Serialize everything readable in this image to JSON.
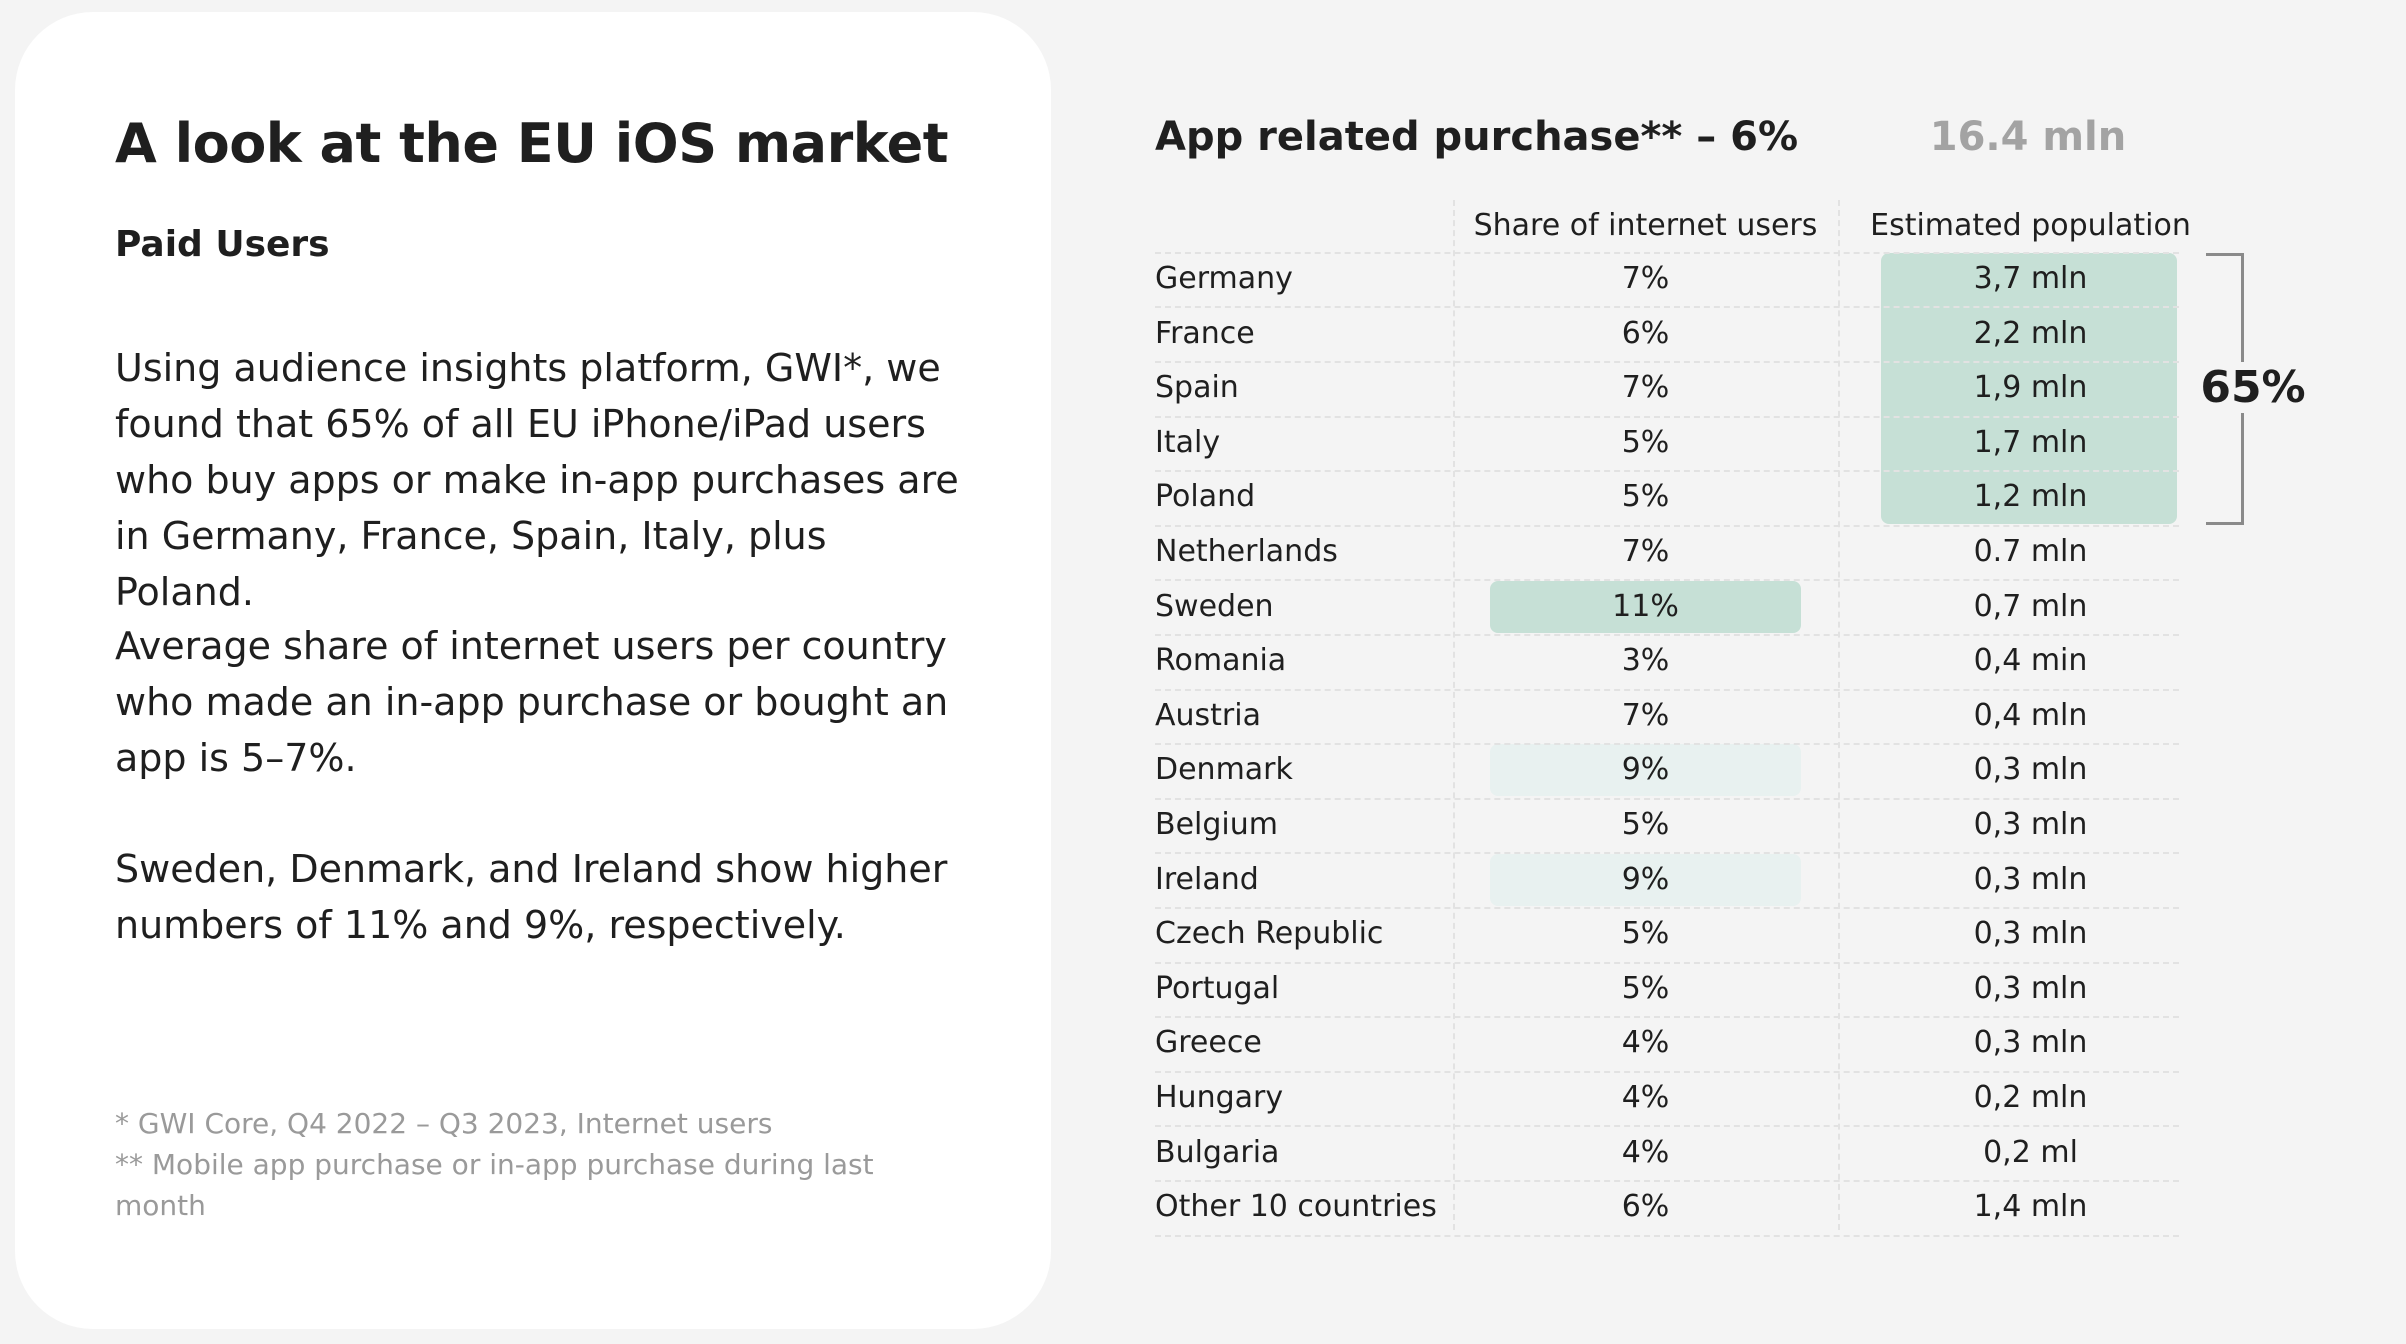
{
  "header": {
    "title": "A look at the EU iOS market",
    "subtitle": "Paid Users"
  },
  "paragraphs": [
    "Using audience insights platform, GWI*, we found that 65% of all EU iPhone/iPad users who buy apps or make in-app purchases are in Germany, France, Spain, Italy, plus Poland.",
    "Average share of internet users per country who made an in-app purchase or bought an app is 5–7%.",
    "Sweden, Denmark, and Ireland show higher numbers of 11% and 9%, respectively."
  ],
  "footnotes": [
    "* GWI Core, Q4 2022 – Q3 2023, Internet users",
    "** Mobile app purchase or in-app purchase during last month"
  ],
  "table": {
    "heading": "App related purchase** – 6%",
    "total": "16.4 mln",
    "columns": [
      "Share of internet users",
      "Estimated population"
    ],
    "bracket_label": "65%",
    "rows": [
      [
        "Germany",
        "7%",
        "3,7 mln"
      ],
      [
        "France",
        "6%",
        "2,2 mln"
      ],
      [
        "Spain",
        "7%",
        "1,9 mln"
      ],
      [
        "Italy",
        "5%",
        "1,7 mln"
      ],
      [
        "Poland",
        "5%",
        "1,2 mln"
      ],
      [
        "Netherlands",
        "7%",
        "0.7 mln"
      ],
      [
        "Sweden",
        "11%",
        "0,7 mln"
      ],
      [
        "Romania",
        "3%",
        "0,4 min"
      ],
      [
        "Austria",
        "7%",
        "0,4 mln"
      ],
      [
        "Denmark",
        "9%",
        "0,3 mln"
      ],
      [
        "Belgium",
        "5%",
        "0,3 mln"
      ],
      [
        "Ireland",
        "9%",
        "0,3 mln"
      ],
      [
        "Czech Republic",
        "5%",
        "0,3 mln"
      ],
      [
        "Portugal",
        "5%",
        "0,3 mln"
      ],
      [
        "Greece",
        "4%",
        "0,3 mln"
      ],
      [
        "Hungary",
        "4%",
        "0,2 mln"
      ],
      [
        "Bulgaria",
        "4%",
        "0,2 ml"
      ],
      [
        "Other 10 countries",
        "6%",
        "1,4 mln"
      ]
    ]
  }
}
